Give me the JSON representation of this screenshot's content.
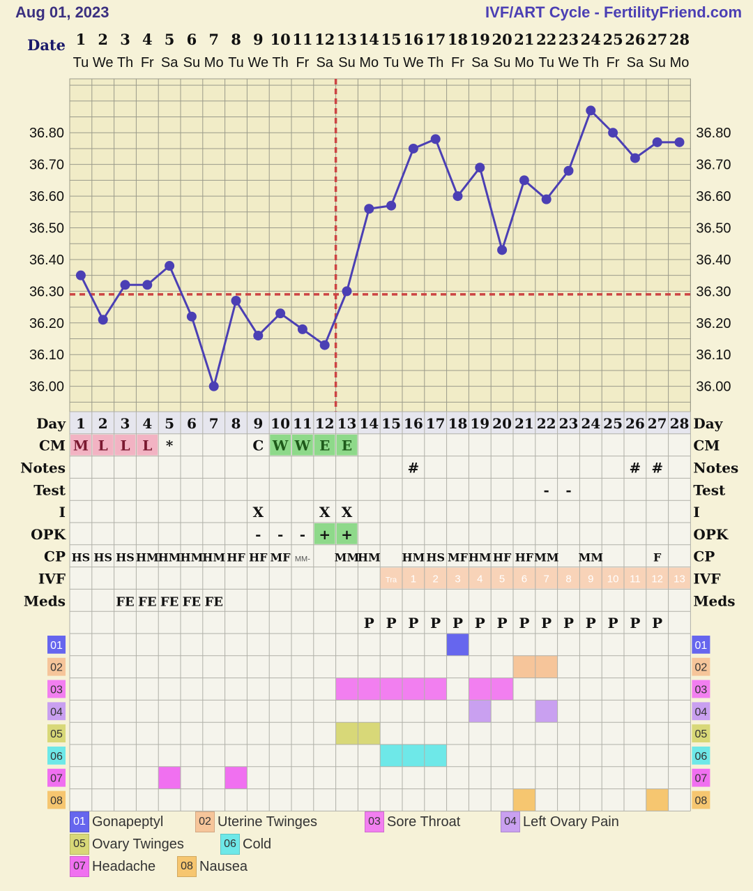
{
  "header": {
    "date_title": "Aug 01, 2023",
    "cycle_title": "IVF/ART Cycle - FertilityFriend.com"
  },
  "colors": {
    "background": "#f6f2d8",
    "grid_line": "#9a9a8a",
    "temp_line": "#4b3fb4",
    "coverline": "#cc4444",
    "cm_menstrual": "#f2b3c3",
    "cm_fertile": "#8ed98a",
    "opk_positive": "#8ed98a",
    "ivf_band": "#f8d3b8",
    "title_color": "#4b3fb4"
  },
  "labels": {
    "date": "Date",
    "day": "Day",
    "rows": [
      "CM",
      "Notes",
      "Test",
      "I",
      "OPK",
      "CP",
      "IVF",
      "Meds"
    ]
  },
  "chart_data": {
    "type": "line",
    "title": "IVF/ART Cycle - FertilityFriend.com",
    "x": [
      1,
      2,
      3,
      4,
      5,
      6,
      7,
      8,
      9,
      10,
      11,
      12,
      13,
      14,
      15,
      16,
      17,
      18,
      19,
      20,
      21,
      22,
      23,
      24,
      25,
      26,
      27,
      28
    ],
    "weekdays": [
      "Tu",
      "We",
      "Th",
      "Fr",
      "Sa",
      "Su",
      "Mo",
      "Tu",
      "We",
      "Th",
      "Fr",
      "Sa",
      "Su",
      "Mo",
      "Tu",
      "We",
      "Th",
      "Fr",
      "Sa",
      "Su",
      "Mo",
      "Tu",
      "We",
      "Th",
      "Fr",
      "Sa",
      "Su",
      "Mo"
    ],
    "series": [
      {
        "values": [
          36.35,
          36.21,
          36.32,
          36.32,
          36.38,
          36.22,
          36.0,
          36.27,
          36.16,
          36.23,
          36.18,
          36.13,
          36.3,
          36.56,
          36.57,
          36.75,
          36.78,
          36.6,
          36.69,
          36.43,
          36.65,
          36.59,
          36.68,
          36.87,
          36.8,
          36.72,
          36.77,
          36.77
        ]
      }
    ],
    "y_ticks": [
      "36.00",
      "36.10",
      "36.20",
      "36.30",
      "36.40",
      "36.50",
      "36.60",
      "36.70",
      "36.80"
    ],
    "ylim": [
      35.92,
      36.97
    ],
    "coverline": 36.29,
    "ovulation_day": 12,
    "grid": true,
    "xlabel": "Date",
    "ylabel": ""
  },
  "rows": {
    "cm": [
      {
        "day": 1,
        "text": "M",
        "type": "menstrual"
      },
      {
        "day": 2,
        "text": "L",
        "type": "menstrual"
      },
      {
        "day": 3,
        "text": "L",
        "type": "menstrual"
      },
      {
        "day": 4,
        "text": "L",
        "type": "menstrual"
      },
      {
        "day": 5,
        "text": "*",
        "type": "plain"
      },
      {
        "day": 9,
        "text": "C",
        "type": "plain"
      },
      {
        "day": 10,
        "text": "W",
        "type": "fertile"
      },
      {
        "day": 11,
        "text": "W",
        "type": "fertile"
      },
      {
        "day": 12,
        "text": "E",
        "type": "fertile"
      },
      {
        "day": 13,
        "text": "E",
        "type": "fertile"
      }
    ],
    "notes": [
      {
        "day": 16,
        "text": "#"
      },
      {
        "day": 26,
        "text": "#"
      },
      {
        "day": 27,
        "text": "#"
      }
    ],
    "test": [
      {
        "day": 22,
        "text": "-"
      },
      {
        "day": 23,
        "text": "-"
      }
    ],
    "intercourse": [
      {
        "day": 9,
        "text": "X"
      },
      {
        "day": 12,
        "text": "X"
      },
      {
        "day": 13,
        "text": "X"
      }
    ],
    "opk": [
      {
        "day": 9,
        "text": "-",
        "type": "plain"
      },
      {
        "day": 10,
        "text": "-",
        "type": "plain"
      },
      {
        "day": 11,
        "text": "-",
        "type": "plain"
      },
      {
        "day": 12,
        "text": "+",
        "type": "positive"
      },
      {
        "day": 13,
        "text": "+",
        "type": "positive"
      }
    ],
    "cp": [
      {
        "day": 1,
        "text": "HS"
      },
      {
        "day": 2,
        "text": "HS"
      },
      {
        "day": 3,
        "text": "HS"
      },
      {
        "day": 4,
        "text": "HM"
      },
      {
        "day": 5,
        "text": "HM"
      },
      {
        "day": 6,
        "text": "HM"
      },
      {
        "day": 7,
        "text": "HM"
      },
      {
        "day": 8,
        "text": "HF"
      },
      {
        "day": 9,
        "text": "HF"
      },
      {
        "day": 10,
        "text": "MF"
      },
      {
        "day": 11,
        "text": "MM-"
      },
      {
        "day": 13,
        "text": "MM"
      },
      {
        "day": 14,
        "text": "HM"
      },
      {
        "day": 16,
        "text": "HM"
      },
      {
        "day": 17,
        "text": "HS"
      },
      {
        "day": 18,
        "text": "MF"
      },
      {
        "day": 19,
        "text": "HM"
      },
      {
        "day": 20,
        "text": "HF"
      },
      {
        "day": 21,
        "text": "HF"
      },
      {
        "day": 22,
        "text": "MM"
      },
      {
        "day": 24,
        "text": "MM"
      },
      {
        "day": 27,
        "text": "F"
      }
    ],
    "ivf": [
      {
        "day": 15,
        "text": "Tra"
      },
      {
        "day": 16,
        "text": "1"
      },
      {
        "day": 17,
        "text": "2"
      },
      {
        "day": 18,
        "text": "3"
      },
      {
        "day": 19,
        "text": "4"
      },
      {
        "day": 20,
        "text": "5"
      },
      {
        "day": 21,
        "text": "6"
      },
      {
        "day": 22,
        "text": "7"
      },
      {
        "day": 23,
        "text": "8"
      },
      {
        "day": 24,
        "text": "9"
      },
      {
        "day": 25,
        "text": "10"
      },
      {
        "day": 26,
        "text": "11"
      },
      {
        "day": 27,
        "text": "12"
      },
      {
        "day": 28,
        "text": "13"
      }
    ],
    "meds": [
      {
        "day": 3,
        "text": "FE"
      },
      {
        "day": 4,
        "text": "FE"
      },
      {
        "day": 5,
        "text": "FE"
      },
      {
        "day": 6,
        "text": "FE"
      },
      {
        "day": 7,
        "text": "FE"
      }
    ],
    "p_row": [
      {
        "day": 14,
        "text": "P"
      },
      {
        "day": 15,
        "text": "P"
      },
      {
        "day": 16,
        "text": "P"
      },
      {
        "day": 17,
        "text": "P"
      },
      {
        "day": 18,
        "text": "P"
      },
      {
        "day": 19,
        "text": "P"
      },
      {
        "day": 20,
        "text": "P"
      },
      {
        "day": 21,
        "text": "P"
      },
      {
        "day": 22,
        "text": "P"
      },
      {
        "day": 23,
        "text": "P"
      },
      {
        "day": 24,
        "text": "P"
      },
      {
        "day": 25,
        "text": "P"
      },
      {
        "day": 26,
        "text": "P"
      },
      {
        "day": 27,
        "text": "P"
      }
    ]
  },
  "symptoms": [
    {
      "code": "01",
      "label": "Gonapeptyl",
      "color": "#6666ee",
      "days": [
        18
      ]
    },
    {
      "code": "02",
      "label": "Uterine Twinges",
      "color": "#f6c59a",
      "days": [
        21,
        22
      ]
    },
    {
      "code": "03",
      "label": "Sore Throat",
      "color": "#f27ff0",
      "days": [
        13,
        14,
        15,
        16,
        17,
        19,
        20
      ]
    },
    {
      "code": "04",
      "label": "Left Ovary Pain",
      "color": "#c9a0f0",
      "days": [
        19,
        22
      ]
    },
    {
      "code": "05",
      "label": "Ovary Twinges",
      "color": "#d8d878",
      "days": [
        13,
        14
      ]
    },
    {
      "code": "06",
      "label": "Cold",
      "color": "#6ee8e8",
      "days": [
        15,
        16,
        17
      ]
    },
    {
      "code": "07",
      "label": "Headache",
      "color": "#f070f0",
      "days": [
        5,
        8
      ]
    },
    {
      "code": "08",
      "label": "Nausea",
      "color": "#f6c670",
      "days": [
        21,
        27
      ]
    }
  ]
}
